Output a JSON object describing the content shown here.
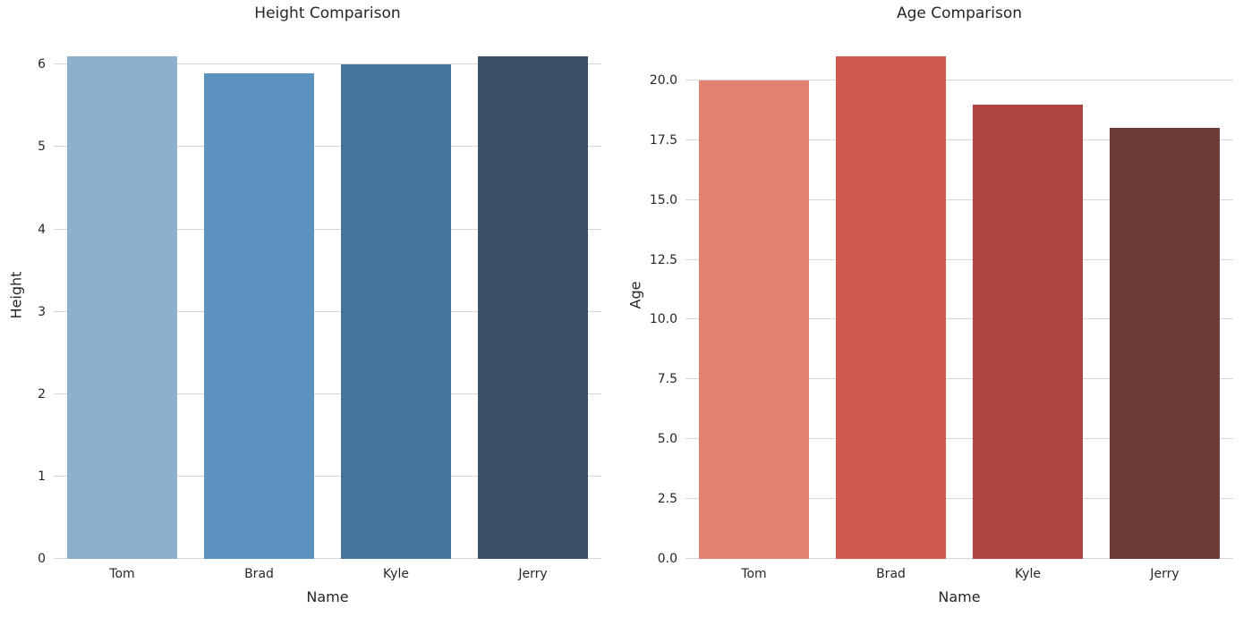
{
  "colors": {
    "background": "#ffffff",
    "text": "#262626",
    "grid": "#d7d7d7"
  },
  "chart_data": [
    {
      "type": "bar",
      "title": "Height Comparison",
      "xlabel": "Name",
      "ylabel": "Height",
      "categories": [
        "Tom",
        "Brad",
        "Kyle",
        "Jerry"
      ],
      "values": [
        6.1,
        5.9,
        6.0,
        6.1
      ],
      "ylim": [
        0,
        6.405
      ],
      "yticks": [
        0,
        1,
        2,
        3,
        4,
        5,
        6
      ],
      "ytick_labels": [
        "0",
        "1",
        "2",
        "3",
        "4",
        "5",
        "6"
      ],
      "bar_colors": [
        "#8CB1CC",
        "#5C93BE",
        "#44749B",
        "#3A5064"
      ],
      "grid": true,
      "legend": false,
      "bar_width_fraction": 0.8
    },
    {
      "type": "bar",
      "title": "Age Comparison",
      "xlabel": "Name",
      "ylabel": "Age",
      "categories": [
        "Tom",
        "Brad",
        "Kyle",
        "Jerry"
      ],
      "values": [
        20,
        21,
        19,
        18
      ],
      "ylim": [
        0,
        22.05
      ],
      "yticks": [
        0,
        2.5,
        5,
        7.5,
        10,
        12.5,
        15,
        17.5,
        20
      ],
      "ytick_labels": [
        "0.0",
        "2.5",
        "5.0",
        "7.5",
        "10.0",
        "12.5",
        "15.0",
        "17.5",
        "20.0"
      ],
      "bar_colors": [
        "#E08172",
        "#D05A4E",
        "#AE4441",
        "#6E3B38"
      ],
      "grid": true,
      "legend": false,
      "bar_width_fraction": 0.8
    }
  ]
}
